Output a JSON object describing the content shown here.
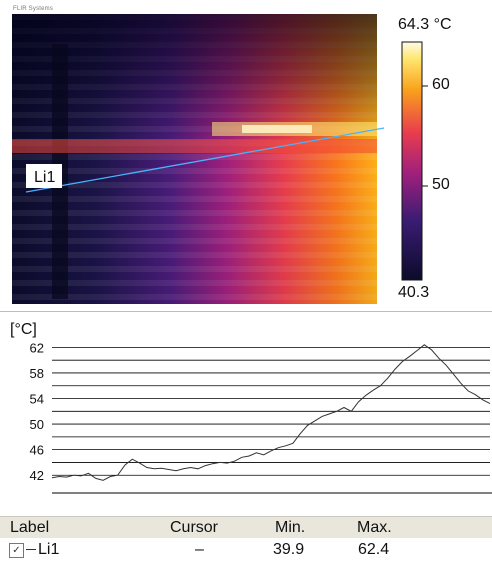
{
  "header_text": "FLIR Systems",
  "scale": {
    "max_label": "64.3 °C",
    "tick_high": "60",
    "tick_mid": "50",
    "min_label": "40.3"
  },
  "line_label": "Li1",
  "plot": {
    "unit_label": "[°C]",
    "ticks": [
      "62",
      "58",
      "54",
      "50",
      "46",
      "42"
    ],
    "chart_data": {
      "type": "line",
      "ylabel": "[°C]",
      "ylim": [
        40,
        63
      ],
      "yticks": [
        42,
        46,
        50,
        54,
        58,
        62
      ],
      "grid": true,
      "series": [
        {
          "values": [
            41.6,
            41.8,
            41.7,
            42.0,
            41.9,
            42.3,
            41.5,
            41.2,
            41.8,
            42.0,
            43.6,
            44.5,
            43.9,
            43.2,
            43.0,
            43.1,
            42.9,
            42.7,
            43.0,
            43.2,
            43.0,
            43.5,
            43.8,
            44.0,
            43.9,
            44.2,
            44.8,
            45.0,
            45.5,
            45.2,
            45.8,
            46.3,
            46.6,
            47.0,
            48.5,
            49.8,
            50.5,
            51.2,
            51.6,
            52.0,
            52.6,
            52.0,
            53.5,
            54.5,
            55.3,
            56.0,
            57.2,
            58.6,
            59.8,
            60.6,
            61.5,
            62.4,
            61.6,
            60.3,
            59.2,
            57.8,
            56.4,
            55.2,
            54.6,
            53.8,
            53.2
          ]
        }
      ]
    }
  },
  "table": {
    "headers": {
      "label": "Label",
      "cursor": "Cursor",
      "min": "Min.",
      "max": "Max."
    },
    "row": {
      "checkbox": "✓",
      "label": "Li1",
      "cursor": "–",
      "min": "39.9",
      "max": "62.4"
    }
  },
  "colors": {
    "line": "#4ab2ff",
    "grid": "#000000",
    "plot_line": "#333333",
    "table_header": "#e9e7dc"
  }
}
